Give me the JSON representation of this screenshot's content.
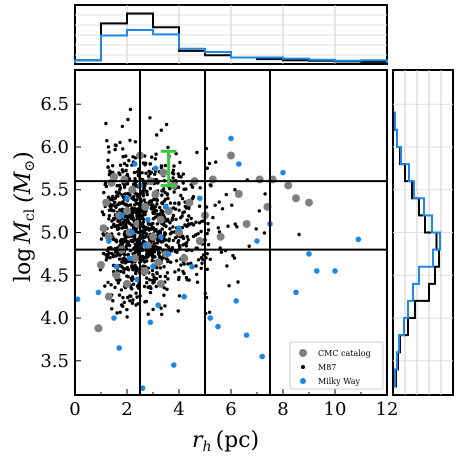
{
  "chart_data": {
    "type": "scatter",
    "xlabel": "r_h (pc)",
    "ylabel": "log M_cl (M_⊙)",
    "xlim": [
      0,
      12
    ],
    "ylim": [
      3.1,
      6.9
    ],
    "xticks": [
      "0",
      "2",
      "4",
      "6",
      "8",
      "10",
      "12"
    ],
    "yticks": [
      "3.5",
      "4.0",
      "4.5",
      "5.0",
      "5.5",
      "6.0",
      "6.5"
    ],
    "vlines": [
      2.5,
      5.0,
      7.5
    ],
    "hlines": [
      4.8,
      5.6
    ],
    "legend_position": "lower-right",
    "series": [
      {
        "name": "CMC catalog",
        "color": "#808080",
        "points": [
          [
            0.9,
            3.88
          ],
          [
            1.0,
            4.62
          ],
          [
            1.1,
            5.05
          ],
          [
            1.2,
            5.35
          ],
          [
            1.3,
            4.95
          ],
          [
            1.4,
            5.58
          ],
          [
            1.6,
            4.5
          ],
          [
            1.7,
            5.2
          ],
          [
            1.8,
            4.8
          ],
          [
            1.9,
            5.62
          ],
          [
            2.0,
            4.4
          ],
          [
            2.1,
            5.0
          ],
          [
            2.2,
            5.5
          ],
          [
            2.3,
            4.7
          ],
          [
            2.4,
            5.1
          ],
          [
            2.5,
            5.9
          ],
          [
            2.6,
            4.55
          ],
          [
            2.7,
            5.3
          ],
          [
            2.8,
            4.85
          ],
          [
            2.9,
            5.6
          ],
          [
            3.0,
            4.95
          ],
          [
            3.1,
            5.45
          ],
          [
            3.2,
            4.65
          ],
          [
            3.3,
            5.15
          ],
          [
            3.4,
            5.7
          ],
          [
            3.5,
            4.75
          ],
          [
            3.6,
            5.25
          ],
          [
            3.8,
            5.55
          ],
          [
            4.0,
            5.0
          ],
          [
            4.2,
            4.7
          ],
          [
            4.4,
            5.35
          ],
          [
            4.6,
            5.6
          ],
          [
            4.8,
            4.9
          ],
          [
            5.0,
            5.2
          ],
          [
            5.3,
            5.62
          ],
          [
            5.6,
            4.95
          ],
          [
            6.0,
            5.9
          ],
          [
            6.3,
            5.45
          ],
          [
            6.6,
            5.1
          ],
          [
            7.1,
            5.62
          ],
          [
            7.4,
            5.3
          ],
          [
            7.6,
            5.62
          ],
          [
            8.2,
            5.55
          ],
          [
            8.5,
            5.4
          ],
          [
            9.0,
            5.35
          ],
          [
            1.5,
            5.65
          ],
          [
            2.0,
            5.25
          ],
          [
            3.3,
            4.4
          ],
          [
            2.7,
            4.55
          ],
          [
            1.3,
            4.25
          ]
        ]
      },
      {
        "name": "M87",
        "color": "#000000",
        "points": []
      },
      {
        "name": "Milky Way",
        "color": "#1e88e5",
        "points": [
          [
            0.1,
            4.22
          ],
          [
            0.9,
            4.3
          ],
          [
            1.3,
            4.9
          ],
          [
            1.6,
            4.6
          ],
          [
            1.7,
            3.65
          ],
          [
            1.8,
            5.2
          ],
          [
            2.0,
            5.4
          ],
          [
            2.1,
            4.7
          ],
          [
            2.2,
            5.0
          ],
          [
            2.3,
            5.8
          ],
          [
            2.4,
            4.45
          ],
          [
            2.5,
            5.55
          ],
          [
            2.6,
            3.18
          ],
          [
            2.7,
            4.85
          ],
          [
            2.8,
            5.15
          ],
          [
            3.0,
            4.6
          ],
          [
            3.1,
            5.75
          ],
          [
            3.3,
            4.95
          ],
          [
            3.5,
            5.3
          ],
          [
            3.6,
            4.75
          ],
          [
            3.8,
            3.45
          ],
          [
            4.0,
            5.05
          ],
          [
            4.2,
            4.25
          ],
          [
            4.5,
            4.6
          ],
          [
            4.8,
            5.4
          ],
          [
            5.2,
            4.0
          ],
          [
            5.5,
            3.9
          ],
          [
            6.0,
            6.1
          ],
          [
            6.2,
            4.2
          ],
          [
            6.3,
            5.8
          ],
          [
            6.6,
            3.8
          ],
          [
            7.0,
            4.9
          ],
          [
            7.2,
            3.55
          ],
          [
            7.5,
            5.1
          ],
          [
            8.0,
            5.7
          ],
          [
            8.5,
            4.3
          ],
          [
            8.6,
            3.65
          ],
          [
            9.0,
            4.75
          ],
          [
            9.3,
            4.55
          ],
          [
            10.0,
            4.55
          ],
          [
            10.9,
            4.92
          ],
          [
            1.5,
            4.0
          ],
          [
            3.2,
            4.15
          ],
          [
            2.9,
            3.95
          ]
        ]
      }
    ],
    "error_bar": {
      "x": 3.6,
      "y": 5.75,
      "yerr": 0.2,
      "xerr": 0.3,
      "color": "#3cc83c"
    },
    "top_histogram": {
      "bins": [
        0,
        1,
        2,
        3,
        4,
        5,
        6,
        7,
        8,
        9,
        10,
        11,
        12
      ],
      "M87": [
        0.05,
        0.72,
        0.9,
        0.65,
        0.22,
        0.14,
        0.1,
        0.07,
        0.05,
        0.04,
        0.03,
        0.02
      ],
      "Milky Way": [
        0.05,
        0.5,
        0.6,
        0.52,
        0.26,
        0.2,
        0.1,
        0.1,
        0.08,
        0.06,
        0.04,
        0.05
      ]
    },
    "right_histogram": {
      "bins": [
        3.2,
        3.4,
        3.6,
        3.8,
        4.0,
        4.2,
        4.4,
        4.6,
        4.8,
        5.0,
        5.2,
        5.4,
        5.6,
        5.8,
        6.0,
        6.2,
        6.4
      ],
      "M87": [
        0.04,
        0.08,
        0.12,
        0.28,
        0.42,
        0.7,
        0.82,
        0.9,
        0.85,
        0.62,
        0.5,
        0.36,
        0.22,
        0.12,
        0.06,
        0.02
      ],
      "Milky Way": [
        0.02,
        0.06,
        0.1,
        0.2,
        0.28,
        0.38,
        0.5,
        0.78,
        0.92,
        0.76,
        0.6,
        0.4,
        0.3,
        0.14,
        0.06,
        0.02
      ]
    }
  },
  "labels": {
    "ylabel_main": "log",
    "ylabel_sub": "cl",
    "ylabel_unit": "(M",
    "ylabel_sun": "⊙",
    "ylabel_close": ")",
    "xlabel_main": "r",
    "xlabel_sub": "h",
    "xlabel_unit": "(pc)",
    "legend": [
      "CMC catalog",
      "M87",
      "Milky Way"
    ]
  }
}
